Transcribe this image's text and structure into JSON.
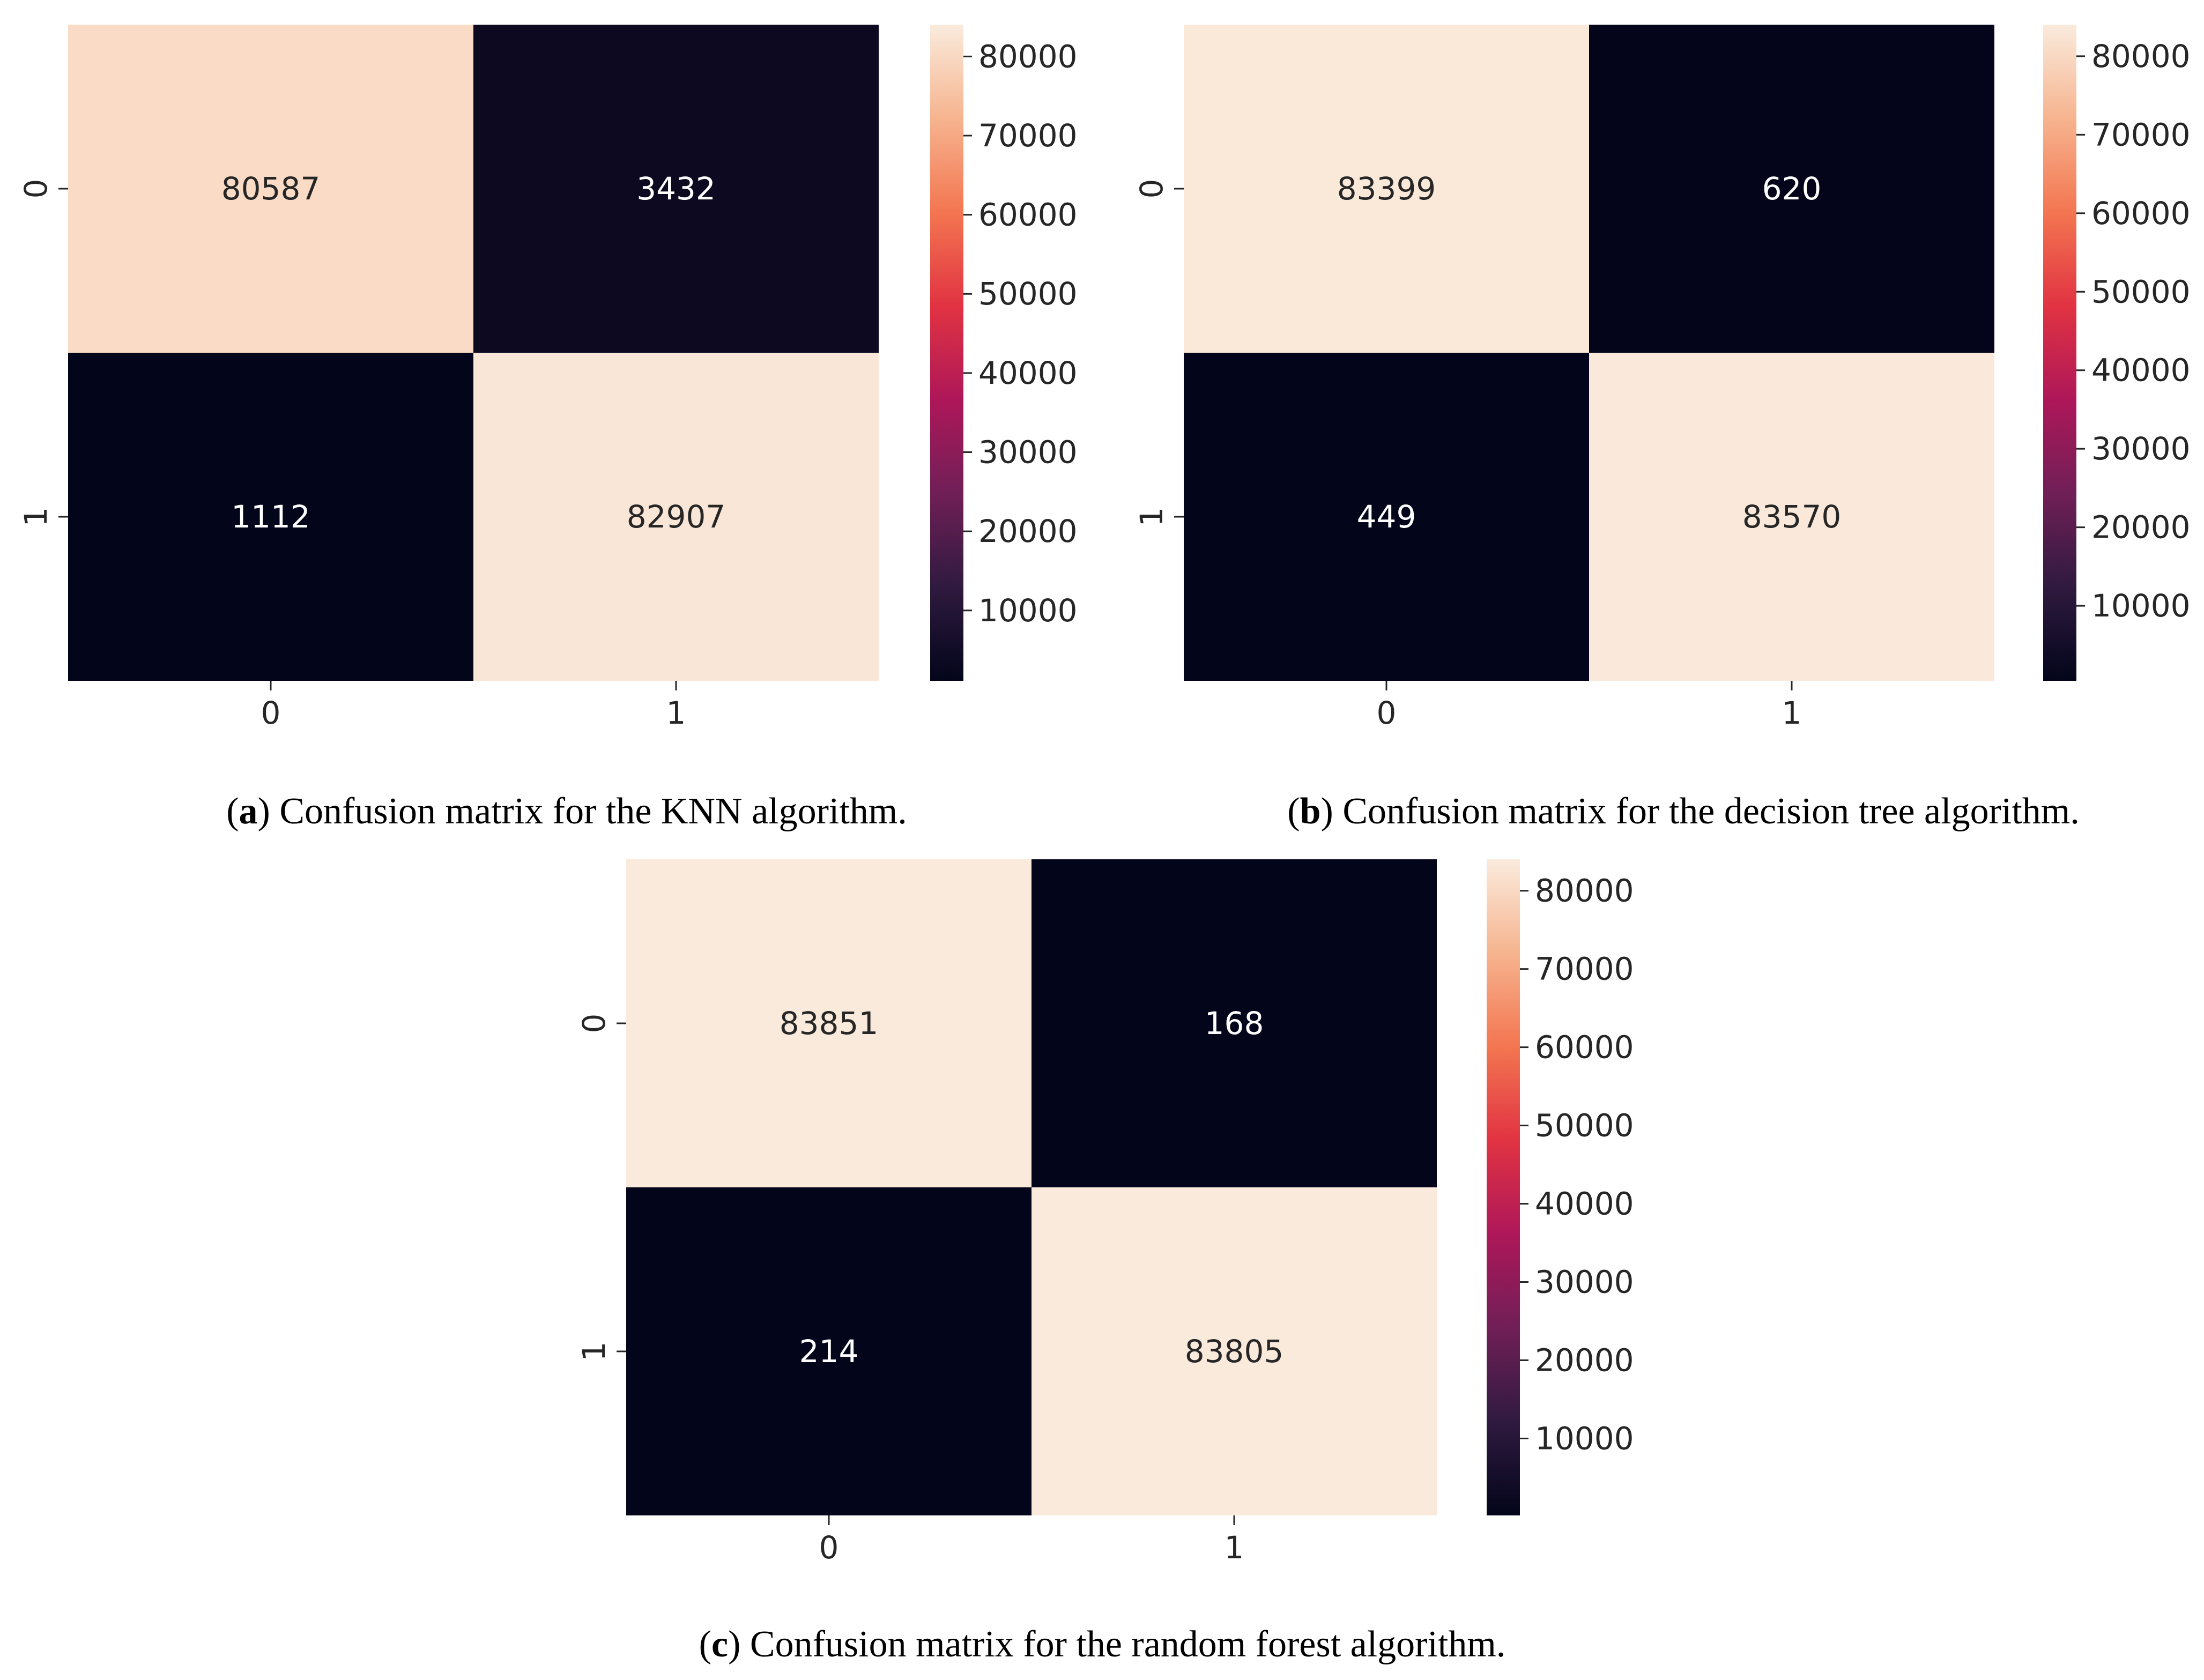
{
  "colormap": {
    "name": "rocket",
    "stops": [
      "#03051a",
      "#2f1a3f",
      "#701f57",
      "#ae1759",
      "#e13342",
      "#f37651",
      "#f6b48f",
      "#faebdd"
    ]
  },
  "chart_data": [
    {
      "id": "a",
      "type": "heatmap",
      "rows": [
        "0",
        "1"
      ],
      "columns": [
        "0",
        "1"
      ],
      "values": [
        [
          80587,
          3432
        ],
        [
          1112,
          82907
        ]
      ],
      "value_labels": [
        [
          "80587",
          "3432"
        ],
        [
          "1112",
          "82907"
        ]
      ],
      "colorbar": {
        "min": 1112,
        "max": 84019,
        "ticks": [
          10000,
          20000,
          30000,
          40000,
          50000,
          60000,
          70000,
          80000
        ],
        "tick_labels": [
          "10000",
          "20000",
          "30000",
          "40000",
          "50000",
          "60000",
          "70000",
          "80000"
        ]
      },
      "caption": {
        "letter": "a",
        "text": " Confusion matrix for the KNN algorithm."
      }
    },
    {
      "id": "b",
      "type": "heatmap",
      "rows": [
        "0",
        "1"
      ],
      "columns": [
        "0",
        "1"
      ],
      "values": [
        [
          83399,
          620
        ],
        [
          449,
          83570
        ]
      ],
      "value_labels": [
        [
          "83399",
          "620"
        ],
        [
          "449",
          "83570"
        ]
      ],
      "colorbar": {
        "min": 449,
        "max": 84019,
        "ticks": [
          10000,
          20000,
          30000,
          40000,
          50000,
          60000,
          70000,
          80000
        ],
        "tick_labels": [
          "10000",
          "20000",
          "30000",
          "40000",
          "50000",
          "60000",
          "70000",
          "80000"
        ]
      },
      "caption": {
        "letter": "b",
        "text": " Confusion matrix for the decision tree algorithm."
      }
    },
    {
      "id": "c",
      "type": "heatmap",
      "rows": [
        "0",
        "1"
      ],
      "columns": [
        "0",
        "1"
      ],
      "values": [
        [
          83851,
          168
        ],
        [
          214,
          83805
        ]
      ],
      "value_labels": [
        [
          "83851",
          "168"
        ],
        [
          "214",
          "83805"
        ]
      ],
      "colorbar": {
        "min": 168,
        "max": 84019,
        "ticks": [
          10000,
          20000,
          30000,
          40000,
          50000,
          60000,
          70000,
          80000
        ],
        "tick_labels": [
          "10000",
          "20000",
          "30000",
          "40000",
          "50000",
          "60000",
          "70000",
          "80000"
        ]
      },
      "caption": {
        "letter": "c",
        "text": " Confusion matrix for the random forest algorithm."
      }
    }
  ]
}
